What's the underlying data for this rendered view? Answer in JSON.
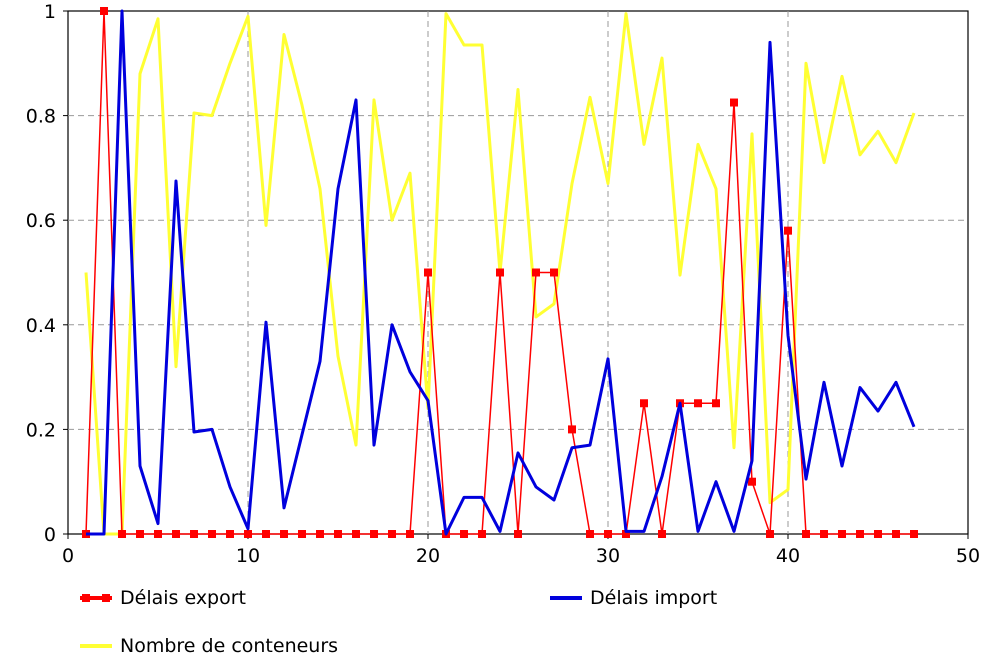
{
  "chart_data": {
    "type": "line",
    "xlim": [
      0,
      50
    ],
    "ylim": [
      0,
      1
    ],
    "x_ticks": [
      "0",
      "10",
      "20",
      "30",
      "40",
      "50"
    ],
    "y_ticks": [
      "0",
      "0.2",
      "0.4",
      "0.6",
      "0.8",
      "1"
    ],
    "grid": true,
    "legend_position": "bottom",
    "series": [
      {
        "name": "Délais export",
        "color": "#ff0000",
        "marker": "square",
        "x": [
          1,
          2,
          3,
          4,
          5,
          6,
          7,
          8,
          9,
          10,
          11,
          12,
          13,
          14,
          15,
          16,
          17,
          18,
          19,
          20,
          21,
          22,
          23,
          24,
          25,
          26,
          27,
          28,
          29,
          30,
          31,
          32,
          33,
          34,
          35,
          36,
          37,
          38,
          39,
          40,
          41,
          42,
          43,
          44,
          45,
          46,
          47
        ],
        "values": [
          0,
          1,
          0,
          0,
          0,
          0,
          0,
          0,
          0,
          0,
          0,
          0,
          0,
          0,
          0,
          0,
          0,
          0,
          0,
          0.5,
          0,
          0,
          0,
          0.5,
          0,
          0.5,
          0.5,
          0.2,
          0,
          0,
          0,
          0.25,
          0,
          0.25,
          0.25,
          0.25,
          0.825,
          0.1,
          0,
          0.58,
          0,
          0,
          0,
          0,
          0,
          0,
          0
        ]
      },
      {
        "name": "Délais import",
        "color": "#0000dd",
        "x": [
          1,
          2,
          3,
          4,
          5,
          6,
          7,
          8,
          9,
          10,
          11,
          12,
          13,
          14,
          15,
          16,
          17,
          18,
          19,
          20,
          21,
          22,
          23,
          24,
          25,
          26,
          27,
          28,
          29,
          30,
          31,
          32,
          33,
          34,
          35,
          36,
          37,
          38,
          39,
          40,
          41,
          42,
          43,
          44,
          45,
          46,
          47
        ],
        "values": [
          0,
          0,
          1,
          0.13,
          0.02,
          0.675,
          0.195,
          0.2,
          0.09,
          0.01,
          0.405,
          0.05,
          0.19,
          0.33,
          0.66,
          0.83,
          0.17,
          0.4,
          0.31,
          0.255,
          0,
          0.07,
          0.07,
          0.005,
          0.155,
          0.09,
          0.065,
          0.165,
          0.17,
          0.335,
          0.005,
          0.005,
          0.11,
          0.25,
          0.005,
          0.1,
          0.005,
          0.14,
          0.94,
          0.38,
          0.105,
          0.29,
          0.13,
          0.28,
          0.235,
          0.29,
          0.205
        ]
      },
      {
        "name": "Nombre de conteneurs",
        "color": "#ffff33",
        "x": [
          1,
          2,
          3,
          4,
          5,
          6,
          7,
          8,
          9,
          10,
          11,
          12,
          13,
          14,
          15,
          16,
          17,
          18,
          19,
          20,
          21,
          22,
          23,
          24,
          25,
          26,
          27,
          28,
          29,
          30,
          31,
          32,
          33,
          34,
          35,
          36,
          37,
          38,
          39,
          40,
          41,
          42,
          43,
          44,
          45,
          46,
          47
        ],
        "values": [
          0.5,
          0,
          0,
          0.88,
          0.985,
          0.32,
          0.805,
          0.8,
          0.9,
          0.99,
          0.59,
          0.955,
          0.82,
          0.66,
          0.34,
          0.17,
          0.83,
          0.6,
          0.69,
          0.24,
          0.995,
          0.935,
          0.935,
          0.5,
          0.85,
          0.415,
          0.44,
          0.67,
          0.835,
          0.67,
          0.995,
          0.745,
          0.91,
          0.495,
          0.745,
          0.66,
          0.165,
          0.765,
          0.06,
          0.085,
          0.9,
          0.71,
          0.875,
          0.725,
          0.77,
          0.71,
          0.805
        ]
      }
    ]
  }
}
